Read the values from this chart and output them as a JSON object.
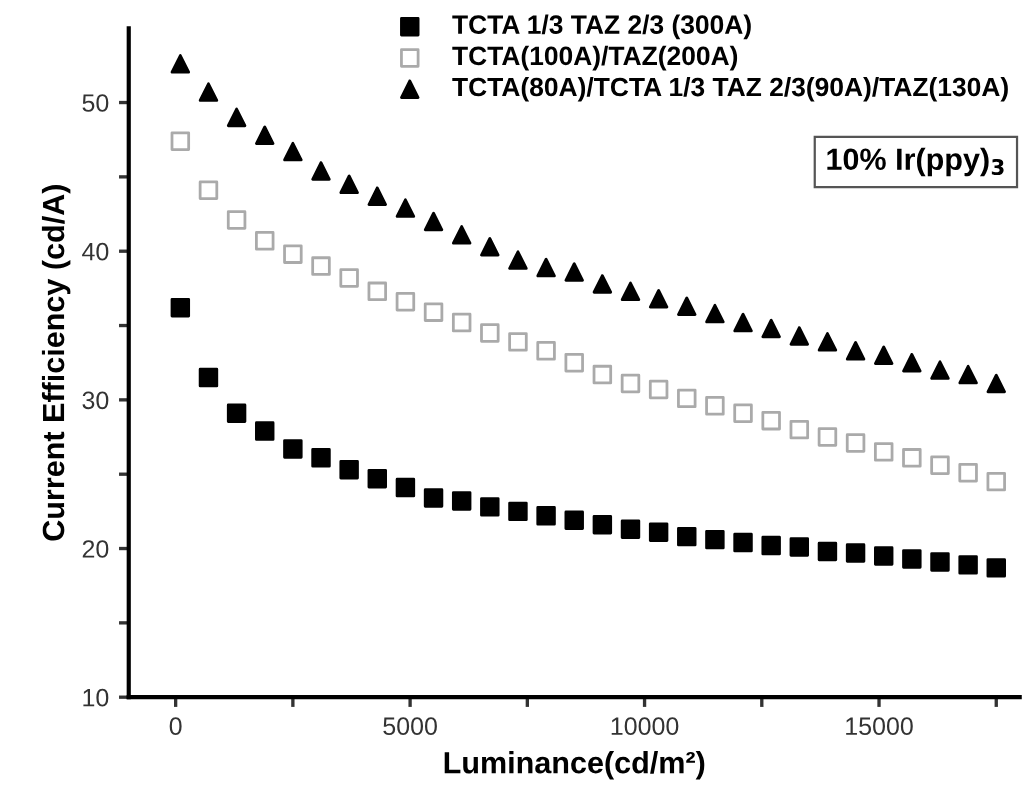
{
  "chart_data": {
    "type": "scatter",
    "xlabel": "Luminance(cd/m²)",
    "ylabel": "Current Efficiency (cd/A)",
    "x": [
      100,
      700,
      1300,
      1900,
      2500,
      3100,
      3700,
      4300,
      4900,
      5500,
      6100,
      6700,
      7300,
      7900,
      8500,
      9100,
      9700,
      10300,
      10900,
      11500,
      12100,
      12700,
      13300,
      13900,
      14500,
      15100,
      15700,
      16300,
      16900,
      17500
    ],
    "series": [
      {
        "name": "TCTA 1/3 TAZ 2/3 (300A)",
        "color": "#000000",
        "marker": "square",
        "values": [
          36.2,
          31.5,
          29.1,
          27.9,
          26.7,
          26.1,
          25.3,
          24.7,
          24.1,
          23.4,
          23.2,
          22.8,
          22.5,
          22.2,
          21.9,
          21.6,
          21.3,
          21.1,
          20.8,
          20.6,
          20.4,
          20.2,
          20.1,
          19.8,
          19.7,
          19.5,
          19.3,
          19.1,
          18.9,
          18.7
        ]
      },
      {
        "name": "TCTA(100A)/TAZ(200A)",
        "color": "#aaaaaa",
        "marker": "square",
        "values": [
          47.4,
          44.1,
          42.1,
          40.7,
          39.8,
          39.0,
          38.2,
          37.3,
          36.6,
          35.9,
          35.2,
          34.5,
          33.9,
          33.3,
          32.5,
          31.7,
          31.1,
          30.7,
          30.1,
          29.6,
          29.1,
          28.6,
          28.0,
          27.5,
          27.1,
          26.5,
          26.1,
          25.6,
          25.1,
          24.5
        ]
      },
      {
        "name": "TCTA(80A)/TCTA 1/3 TAZ 2/3(90A)/TAZ(130A)",
        "color": "#000000",
        "marker": "triangle",
        "values": [
          52.6,
          50.7,
          49.0,
          47.8,
          46.7,
          45.4,
          44.5,
          43.7,
          42.9,
          42.0,
          41.1,
          40.3,
          39.4,
          38.9,
          38.6,
          37.8,
          37.3,
          36.8,
          36.3,
          35.8,
          35.2,
          34.8,
          34.3,
          33.9,
          33.3,
          33.0,
          32.5,
          32.0,
          31.7,
          31.1
        ]
      }
    ],
    "xlim": [
      -1000,
      18000
    ],
    "ylim": [
      10,
      55
    ],
    "xticks": [
      0,
      {
        "value": 2500,
        "label": null
      },
      5000,
      {
        "value": 7500,
        "label": null
      },
      10000,
      {
        "value": 12500,
        "label": null
      },
      15000,
      {
        "value": 17500,
        "label": null
      }
    ],
    "yticks": [
      10,
      {
        "value": 15,
        "label": null
      },
      20,
      {
        "value": 25,
        "label": null
      },
      30,
      {
        "value": 35,
        "label": null
      },
      40,
      {
        "value": 45,
        "label": null
      },
      50
    ],
    "annotations": [
      "10% Ir(ppy)$_{3}$"
    ],
    "legend": "top right",
    "grid": false
  }
}
